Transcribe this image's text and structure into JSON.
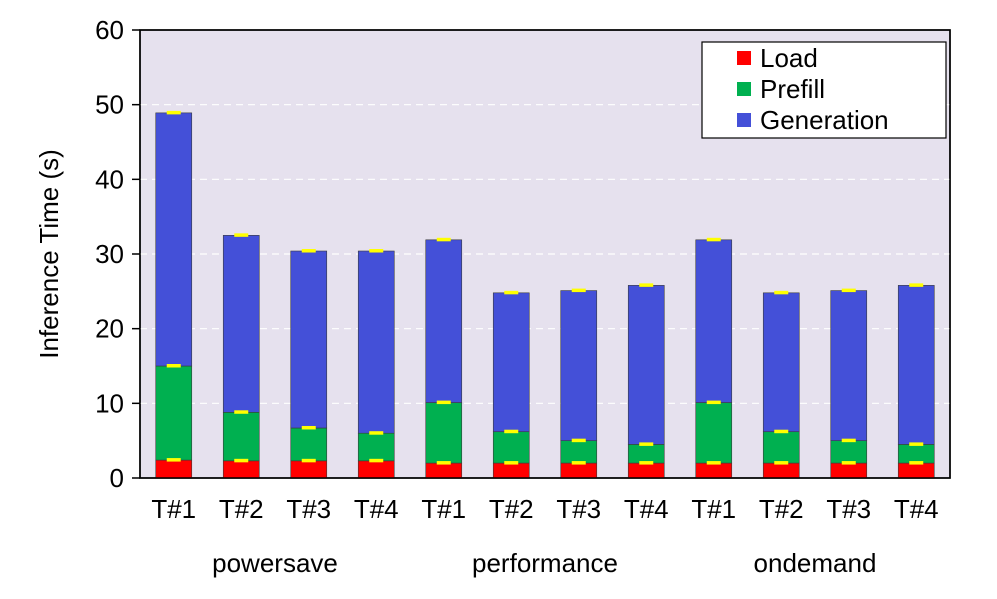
{
  "chart_data": {
    "type": "bar",
    "stacked": true,
    "title": "",
    "ylabel": "Inference Time (s)",
    "ylim": [
      0,
      60
    ],
    "yticks": [
      0,
      10,
      20,
      30,
      40,
      50,
      60
    ],
    "grid": true,
    "legend_position": "top-right",
    "categories": [
      "T#1",
      "T#2",
      "T#3",
      "T#4",
      "T#1",
      "T#2",
      "T#3",
      "T#4",
      "T#1",
      "T#2",
      "T#3",
      "T#4"
    ],
    "groups": [
      {
        "label": "powersave",
        "count": 4
      },
      {
        "label": "performance",
        "count": 4
      },
      {
        "label": "ondemand",
        "count": 4
      }
    ],
    "series": [
      {
        "name": "Load",
        "color": "#ff0000",
        "values": [
          2.4,
          2.3,
          2.3,
          2.3,
          2.0,
          2.0,
          2.0,
          2.0,
          2.0,
          2.0,
          2.0,
          2.0
        ]
      },
      {
        "name": "Prefill",
        "color": "#00b050",
        "values": [
          12.6,
          6.5,
          4.4,
          3.7,
          8.1,
          4.2,
          3.0,
          2.5,
          8.1,
          4.2,
          3.0,
          2.5
        ]
      },
      {
        "name": "Generation",
        "color": "#4450d8",
        "values": [
          33.9,
          23.7,
          23.7,
          24.4,
          21.8,
          18.6,
          20.1,
          21.3,
          21.8,
          18.6,
          20.1,
          21.3
        ]
      }
    ],
    "error_marker_color": "#ffff00",
    "plot_background": "#e6e1ee"
  }
}
